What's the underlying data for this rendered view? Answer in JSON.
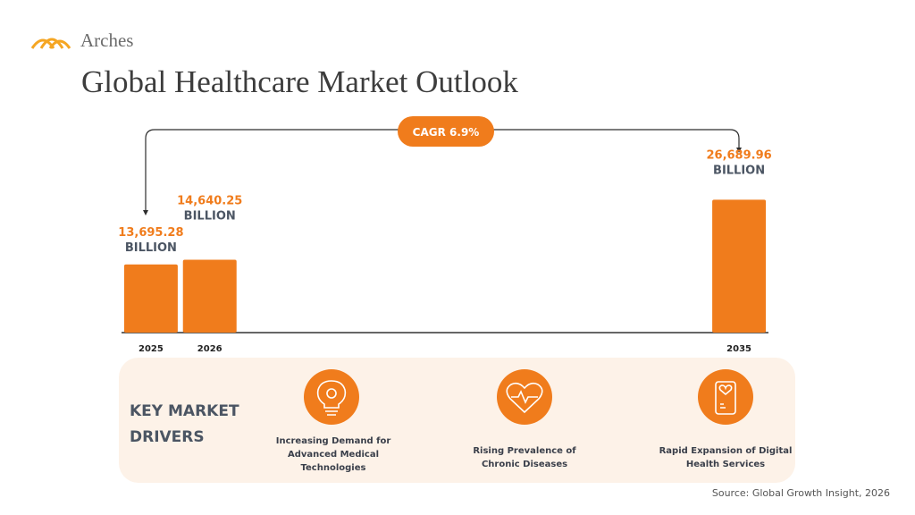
{
  "brand": "Arches",
  "chart_data": {
    "type": "bar",
    "title": "Global Healthcare Market Outlook",
    "x": [
      2025,
      2026,
      2035
    ],
    "values": [
      13695.28,
      14640.25,
      26689.96
    ],
    "value_labels": [
      "13,695.28",
      "14,640.25",
      "26,689.96"
    ],
    "unit": "BILLION",
    "color": "#f07c1c",
    "xlim": [
      2024.5,
      2035.5
    ],
    "ylim": [
      0,
      30000
    ],
    "annotation": "CAGR 6.9%"
  },
  "drivers": {
    "title": "KEY MARKET DRIVERS",
    "items": [
      "Increasing Demand for Advanced Medical Technologies",
      "Rising Prevalence of Chronic Diseases",
      "Rapid Expansion of Digital Health Services"
    ]
  },
  "source": "Source: Global Growth Insight, 2026"
}
